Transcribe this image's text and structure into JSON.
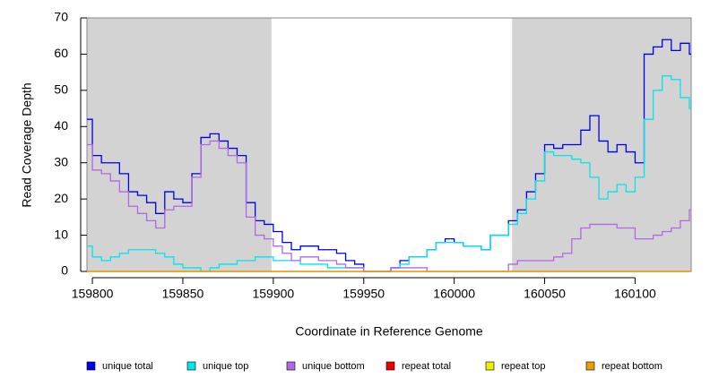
{
  "chart_data": {
    "type": "step-line",
    "x_label": "Coordinate in Reference Genome",
    "y_label": "Read Coverage Depth",
    "xlim": [
      159797,
      160131
    ],
    "ylim": [
      0,
      70
    ],
    "xticks": [
      159800,
      159850,
      159900,
      159950,
      160000,
      160050,
      160100
    ],
    "yticks": [
      0,
      10,
      20,
      30,
      40,
      50,
      60,
      70
    ],
    "shaded_regions": [
      [
        159797,
        159899
      ],
      [
        160032,
        160131
      ]
    ],
    "shade_color": "#d3d3d3",
    "legend": "bottom",
    "x": [
      159797,
      159800,
      159805,
      159810,
      159815,
      159820,
      159825,
      159830,
      159835,
      159840,
      159845,
      159850,
      159855,
      159860,
      159865,
      159870,
      159875,
      159880,
      159885,
      159890,
      159895,
      159900,
      159905,
      159910,
      159915,
      159920,
      159925,
      159930,
      159935,
      159940,
      159945,
      159950,
      159955,
      159960,
      159965,
      159970,
      159975,
      159980,
      159985,
      159990,
      159995,
      160000,
      160005,
      160010,
      160015,
      160020,
      160025,
      160030,
      160035,
      160040,
      160045,
      160050,
      160055,
      160060,
      160065,
      160070,
      160075,
      160080,
      160085,
      160090,
      160095,
      160100,
      160105,
      160110,
      160115,
      160120,
      160125,
      160130
    ],
    "series": [
      {
        "name": "unique total",
        "color": "#0000ee",
        "values": [
          42,
          32,
          30,
          30,
          27,
          22,
          21,
          19,
          16,
          22,
          20,
          19,
          27,
          37,
          38,
          36,
          34,
          32,
          19,
          14,
          13,
          11,
          8,
          6,
          7,
          7,
          6,
          6,
          5,
          3,
          2,
          0,
          0,
          0,
          1,
          3,
          4,
          4,
          6,
          8,
          9,
          8,
          7,
          7,
          6,
          10,
          10,
          14,
          17,
          22,
          27,
          35,
          34,
          35,
          35,
          39,
          43,
          36,
          33,
          35,
          33,
          30,
          60,
          62,
          64,
          61,
          63,
          60
        ]
      },
      {
        "name": "unique top",
        "color": "#00e5ee",
        "values": [
          7,
          4,
          3,
          4,
          5,
          6,
          6,
          6,
          5,
          4,
          2,
          1,
          1,
          0,
          1,
          2,
          2,
          3,
          3,
          4,
          4,
          3,
          3,
          3,
          2,
          2,
          2,
          1,
          1,
          1,
          1,
          0,
          0,
          0,
          1,
          2,
          4,
          4,
          6,
          8,
          8,
          8,
          7,
          7,
          6,
          10,
          10,
          13,
          16,
          20,
          25,
          33,
          32,
          32,
          31,
          30,
          26,
          20,
          22,
          24,
          22,
          26,
          42,
          50,
          54,
          53,
          48,
          45
        ]
      },
      {
        "name": "unique bottom",
        "color": "#b266e8",
        "values": [
          35,
          28,
          27,
          25,
          22,
          18,
          16,
          14,
          12,
          17,
          18,
          18,
          26,
          35,
          36,
          34,
          32,
          30,
          15,
          10,
          9,
          7,
          5,
          3,
          4,
          4,
          3,
          3,
          2,
          1,
          1,
          0,
          0,
          0,
          1,
          1,
          1,
          1,
          0,
          0,
          0,
          0,
          0,
          0,
          0,
          0,
          0,
          2,
          3,
          3,
          3,
          3,
          4,
          5,
          9,
          12,
          13,
          13,
          13,
          12,
          12,
          9,
          9,
          10,
          11,
          12,
          14,
          17
        ]
      },
      {
        "name": "repeat total",
        "color": "#ee0000",
        "values": [
          0,
          0,
          0,
          0,
          0,
          0,
          0,
          0,
          0,
          0,
          0,
          0,
          0,
          0,
          0,
          0,
          0,
          0,
          0,
          0,
          0,
          0,
          0,
          0,
          0,
          0,
          0,
          0,
          0,
          0,
          0,
          0,
          0,
          0,
          0,
          0,
          0,
          0,
          0,
          0,
          0,
          0,
          0,
          0,
          0,
          0,
          0,
          0,
          0,
          0,
          0,
          0,
          0,
          0,
          0,
          0,
          0,
          0,
          0,
          0,
          0,
          0,
          0,
          0,
          0,
          0,
          0,
          0
        ]
      },
      {
        "name": "repeat top",
        "color": "#eeee00",
        "values": [
          0,
          0,
          0,
          0,
          0,
          0,
          0,
          0,
          0,
          0,
          0,
          0,
          0,
          0,
          0,
          0,
          0,
          0,
          0,
          0,
          0,
          0,
          0,
          0,
          0,
          0,
          0,
          0,
          0,
          0,
          0,
          0,
          0,
          0,
          0,
          0,
          0,
          0,
          0,
          0,
          0,
          0,
          0,
          0,
          0,
          0,
          0,
          0,
          0,
          0,
          0,
          0,
          0,
          0,
          0,
          0,
          0,
          0,
          0,
          0,
          0,
          0,
          0,
          0,
          0,
          0,
          0,
          0
        ]
      },
      {
        "name": "repeat bottom",
        "color": "#ee9a00",
        "values": [
          0,
          0,
          0,
          0,
          0,
          0,
          0,
          0,
          0,
          0,
          0,
          0,
          0,
          0,
          0,
          0,
          0,
          0,
          0,
          0,
          0,
          0,
          0,
          0,
          0,
          0,
          0,
          0,
          0,
          0,
          0,
          0,
          0,
          0,
          0,
          0,
          0,
          0,
          0,
          0,
          0,
          0,
          0,
          0,
          0,
          0,
          0,
          0,
          0,
          0,
          0,
          0,
          0,
          0,
          0,
          0,
          0,
          0,
          0,
          0,
          0,
          0,
          0,
          0,
          0,
          0,
          0,
          0
        ]
      }
    ]
  }
}
